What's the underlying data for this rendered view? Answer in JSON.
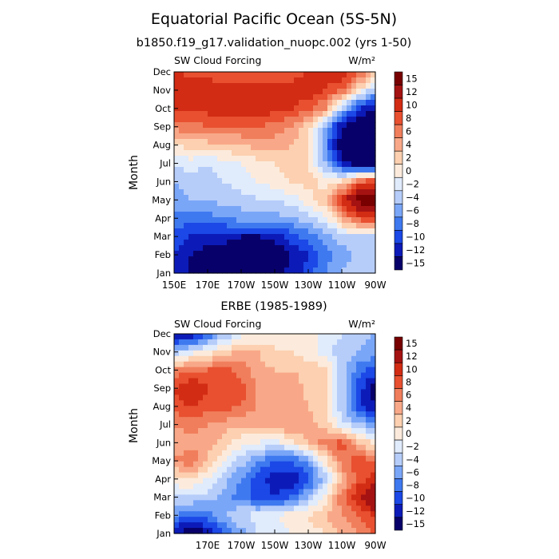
{
  "title": "Equatorial Pacific Ocean (5S-5N)",
  "subtitle_top": "b1850.f19_g17.validation_nuopc.002 (yrs 1-50)",
  "subtitle_bottom": "ERBE (1985-1989)",
  "colors": {
    "levels": [
      "#08006a",
      "#0c1bb8",
      "#1b48e6",
      "#3f79f0",
      "#7aa6f8",
      "#b6cdfa",
      "#e0ebfc",
      "#fcebdc",
      "#fcd0b0",
      "#f8a888",
      "#f07e5c",
      "#e85030",
      "#d22c14",
      "#a51212",
      "#780000"
    ]
  },
  "chart_data": [
    {
      "type": "heatmap",
      "panel": "top",
      "left_label": "SW Cloud Forcing",
      "right_label": "W/m²",
      "ylabel": "Month",
      "y_ticks": [
        "Jan",
        "Feb",
        "Mar",
        "Apr",
        "May",
        "Jun",
        "Jul",
        "Aug",
        "Sep",
        "Oct",
        "Nov",
        "Dec"
      ],
      "x_ticks": [
        "150E",
        "170E",
        "170W",
        "150W",
        "130W",
        "110W",
        "90W"
      ],
      "x_range": [
        150,
        270
      ],
      "colorbar_ticks": [
        "15",
        "12",
        "10",
        "8",
        "6",
        "4",
        "2",
        "0",
        "-2",
        "-4",
        "-6",
        "-8",
        "-10",
        "-12",
        "-15"
      ],
      "levels": [
        -15,
        -12,
        -10,
        -8,
        -6,
        -4,
        -2,
        0,
        2,
        4,
        6,
        8,
        10,
        12,
        15
      ],
      "rows_note": "rows Jan..Dec, columns at longitudes 150E..90W every 10 deg (13 columns), W/m2",
      "z": [
        [
          -10,
          -12,
          -13,
          -14,
          -15,
          -15,
          -13,
          -11,
          -9,
          -6,
          -4,
          -3,
          -2
        ],
        [
          -10,
          -12,
          -13,
          -14,
          -16,
          -16,
          -14,
          -12,
          -10,
          -7,
          -5,
          -3,
          -2
        ],
        [
          -9,
          -10,
          -11,
          -11,
          -12,
          -12,
          -11,
          -9,
          -7,
          -5,
          -3,
          -2,
          -2
        ],
        [
          -7,
          -7,
          -7,
          -6,
          -5,
          -5,
          -5,
          -4,
          -3,
          -1,
          5,
          9,
          11
        ],
        [
          -5,
          -4,
          -4,
          -3,
          -3,
          -2,
          -2,
          -1,
          1,
          4,
          11,
          16,
          17
        ],
        [
          -4,
          -3,
          -3,
          -2,
          -1,
          0,
          1,
          2,
          3,
          1,
          2,
          8,
          10
        ],
        [
          -2,
          -1,
          -2,
          -1,
          0,
          1,
          2,
          3,
          2,
          -4,
          -11,
          -14,
          -15
        ],
        [
          2,
          3,
          3,
          4,
          4,
          5,
          5,
          4,
          2,
          -6,
          -14,
          -17,
          -17
        ],
        [
          7,
          7,
          8,
          8,
          8,
          8,
          7,
          6,
          3,
          -5,
          -12,
          -15,
          -16
        ],
        [
          10,
          10,
          11,
          11,
          12,
          12,
          11,
          10,
          9,
          6,
          -3,
          -10,
          -12
        ],
        [
          12,
          12,
          12,
          11,
          11,
          11,
          11,
          11,
          11,
          10,
          8,
          2,
          -4
        ],
        [
          11,
          9,
          9,
          8,
          8,
          8,
          9,
          9,
          10,
          11,
          12,
          9,
          4
        ]
      ]
    },
    {
      "type": "heatmap",
      "panel": "bottom",
      "left_label": "SW Cloud Forcing",
      "right_label": "W/m²",
      "ylabel": "Month",
      "y_ticks": [
        "Jan",
        "Feb",
        "Mar",
        "Apr",
        "May",
        "Jun",
        "Jul",
        "Aug",
        "Sep",
        "Oct",
        "Nov",
        "Dec"
      ],
      "x_ticks": [
        "170E",
        "170W",
        "150W",
        "130W",
        "110W",
        "90W"
      ],
      "x_range": [
        150,
        270
      ],
      "colorbar_ticks": [
        "15",
        "12",
        "10",
        "8",
        "6",
        "4",
        "2",
        "0",
        "-2",
        "-4",
        "-6",
        "-8",
        "-10",
        "-12",
        "-15"
      ],
      "levels": [
        -15,
        -12,
        -10,
        -8,
        -6,
        -4,
        -2,
        0,
        2,
        4,
        6,
        8,
        10,
        12,
        15
      ],
      "rows_note": "rows Jan..Dec, columns at longitudes 150E..90W every 10 deg (13 columns), W/m2",
      "z": [
        [
          -12,
          -14,
          -12,
          -8,
          -5,
          -2,
          -1,
          0,
          1,
          2,
          4,
          6,
          8
        ],
        [
          -6,
          -8,
          -7,
          -4,
          -2,
          -1,
          0,
          1,
          2,
          4,
          6,
          8,
          11
        ],
        [
          -2,
          -2,
          -3,
          -5,
          -7,
          -9,
          -10,
          -8,
          -4,
          1,
          7,
          12,
          15
        ],
        [
          1,
          2,
          0,
          -3,
          -6,
          -9,
          -11,
          -12,
          -9,
          -3,
          4,
          9,
          11
        ],
        [
          6,
          8,
          4,
          0,
          -3,
          -6,
          -8,
          -8,
          -5,
          1,
          7,
          9,
          8
        ],
        [
          4,
          5,
          5,
          3,
          1,
          0,
          -1,
          1,
          4,
          7,
          9,
          4,
          1
        ],
        [
          6,
          7,
          6,
          5,
          4,
          5,
          6,
          6,
          5,
          3,
          -1,
          -4,
          -5
        ],
        [
          9,
          10,
          9,
          9,
          8,
          6,
          6,
          6,
          4,
          2,
          -3,
          -10,
          -12
        ],
        [
          10,
          12,
          10,
          10,
          9,
          6,
          5,
          6,
          3,
          3,
          -3,
          -9,
          -13
        ],
        [
          6,
          8,
          8,
          9,
          7,
          5,
          4,
          4,
          3,
          3,
          -3,
          -7,
          -9
        ],
        [
          -3,
          -1,
          1,
          3,
          5,
          4,
          2,
          2,
          1,
          -1,
          -3,
          -4,
          -5
        ],
        [
          -13,
          -12,
          -8,
          -4,
          -1,
          0,
          2,
          2,
          1,
          -1,
          -2,
          -3,
          -4
        ]
      ]
    }
  ]
}
